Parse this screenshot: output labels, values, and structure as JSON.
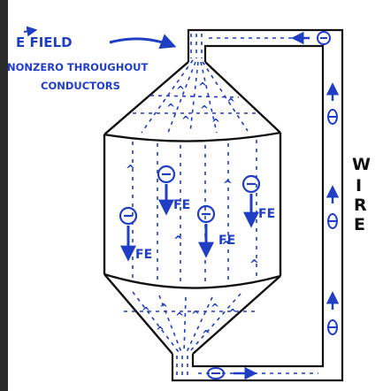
{
  "annotation": {
    "line1": "E FIELD",
    "line2": "NONZERO THROUGHOUT",
    "line3": "CONDUCTORS"
  },
  "wire_label": [
    "W",
    "I",
    "R",
    "E"
  ],
  "electron_symbol": "⊖",
  "force_label": "FE",
  "colors": {
    "ink": "#111111",
    "annotation_blue": "#1f3ec4",
    "charge_blue": "#1f3ec4",
    "left_bar": "#2b2b2b"
  }
}
